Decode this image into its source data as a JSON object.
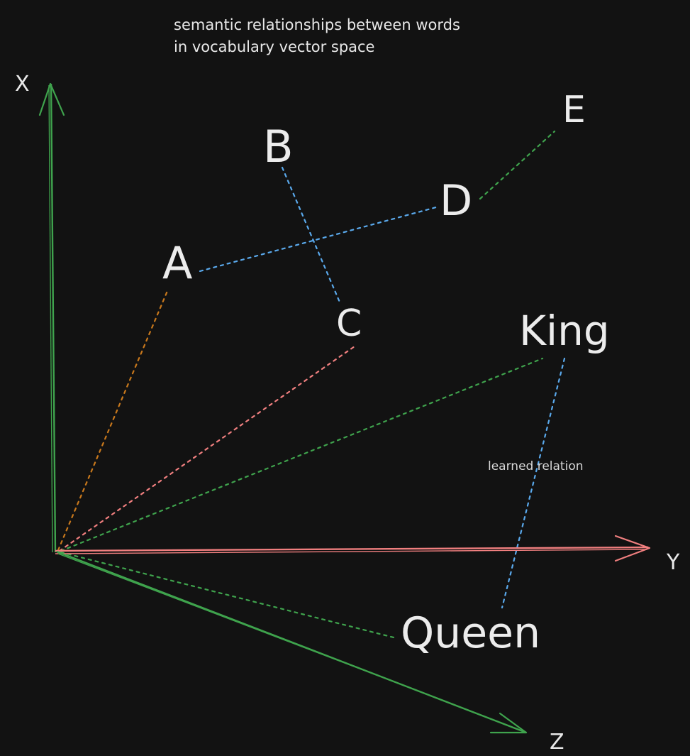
{
  "title": {
    "line1": "semantic relationships between words",
    "line2": "in vocabulary vector space"
  },
  "axes": {
    "x_label": "X",
    "y_label": "Y",
    "z_label": "Z"
  },
  "words": {
    "a": "A",
    "b": "B",
    "c": "C",
    "d": "D",
    "e": "E",
    "king": "King",
    "queen": "Queen"
  },
  "annotation": {
    "relation": "learned relation"
  },
  "colors": {
    "background": "#121212",
    "x_axis": "#3fa34d",
    "y_axis": "#f07f7f",
    "z_axis": "#3fa34d",
    "relation_blue": "#5aa9ec",
    "to_a": "#c8781c",
    "to_c": "#f07f7f",
    "to_king": "#3fa34d",
    "to_queen": "#3fa34d",
    "d_to_e": "#3fa34d"
  }
}
